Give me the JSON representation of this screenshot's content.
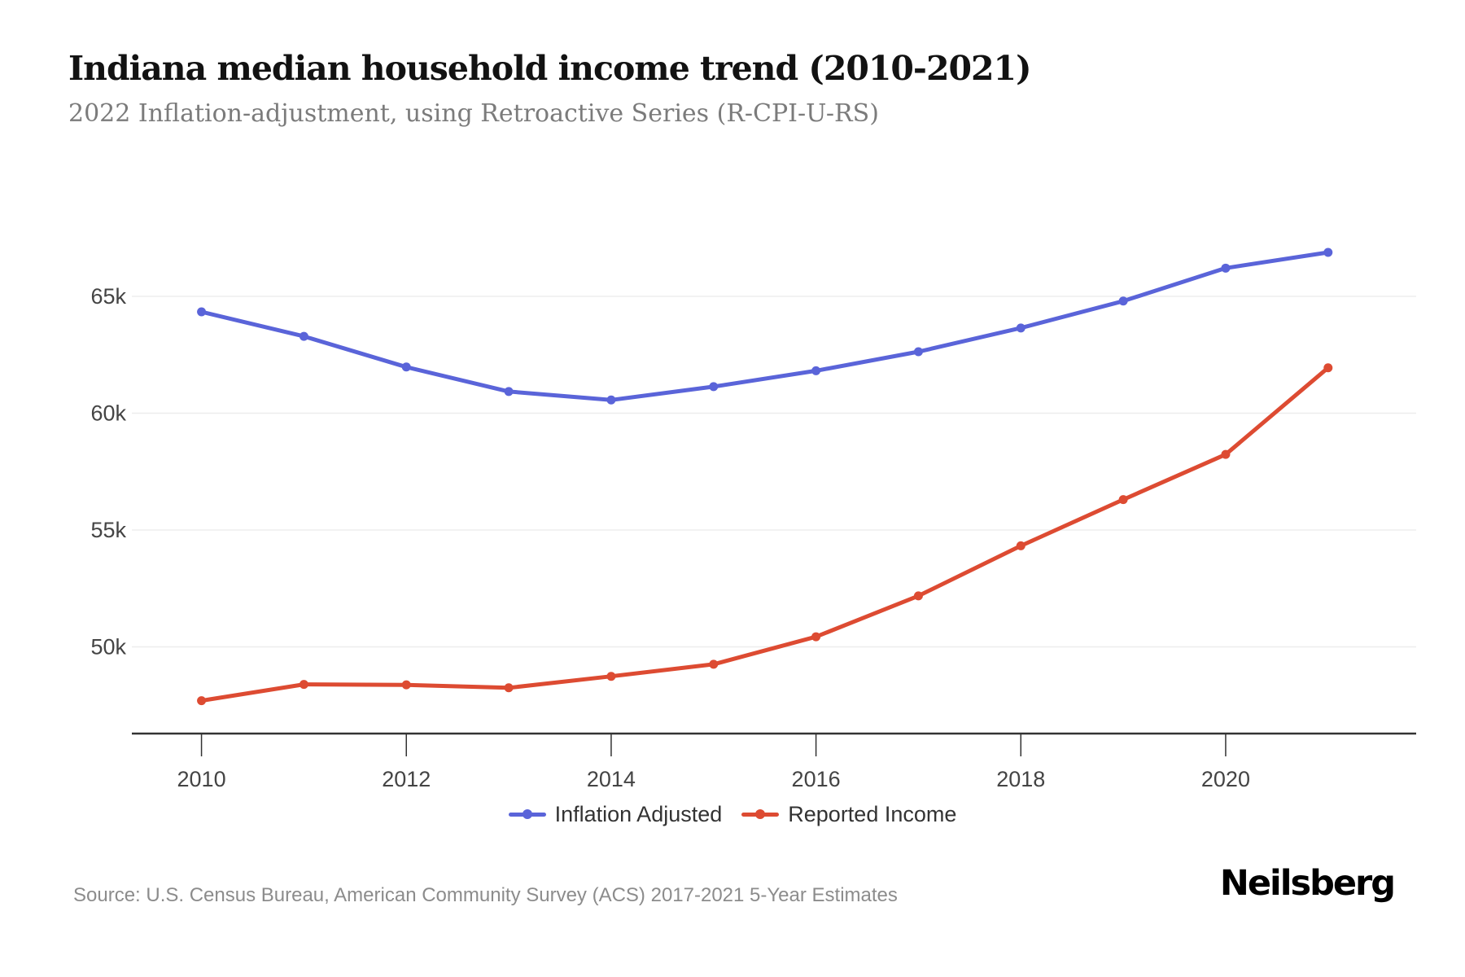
{
  "header": {
    "title": "Indiana median household income trend (2010-2021)",
    "subtitle": "2022 Inflation-adjustment, using Retroactive Series (R-CPI-U-RS)"
  },
  "chart_data": {
    "type": "line",
    "title": "Indiana median household income trend (2010-2021)",
    "subtitle": "2022 Inflation-adjustment, using Retroactive Series (R-CPI-U-RS)",
    "x": [
      2010,
      2011,
      2012,
      2013,
      2014,
      2015,
      2016,
      2017,
      2018,
      2019,
      2020,
      2021
    ],
    "series": [
      {
        "name": "Inflation Adjusted",
        "color": "#5a64d9",
        "values": [
          64338,
          63288,
          61977,
          60928,
          60566,
          61135,
          61816,
          62629,
          63647,
          64799,
          66208,
          66881
        ]
      },
      {
        "name": "Reported Income",
        "color": "#dd4b32",
        "values": [
          47697,
          48393,
          48374,
          48248,
          48737,
          49255,
          50433,
          52182,
          54325,
          56303,
          58235,
          61944
        ]
      }
    ],
    "xlabel": "",
    "ylabel": "",
    "xlim": [
      2009.32,
      2021.86
    ],
    "ylim": [
      46289,
      68972
    ],
    "y_ticks": [
      {
        "value": 50000,
        "label": "50k"
      },
      {
        "value": 55000,
        "label": "55k"
      },
      {
        "value": 60000,
        "label": "60k"
      },
      {
        "value": 65000,
        "label": "65k"
      }
    ],
    "x_ticks": [
      {
        "value": 2010,
        "label": "2010"
      },
      {
        "value": 2012,
        "label": "2012"
      },
      {
        "value": 2014,
        "label": "2014"
      },
      {
        "value": 2016,
        "label": "2016"
      },
      {
        "value": 2018,
        "label": "2018"
      },
      {
        "value": 2020,
        "label": "2020"
      }
    ],
    "grid": true,
    "legend_position": "bottom",
    "colors": {
      "grid": "#ededed",
      "axis": "#333333",
      "tick_text": "#444444"
    }
  },
  "legend": {
    "items": [
      {
        "label": "Inflation Adjusted"
      },
      {
        "label": "Reported Income"
      }
    ]
  },
  "footer": {
    "source": "Source: U.S. Census Bureau, American Community Survey (ACS) 2017-2021 5-Year Estimates",
    "brand": "Neilsberg"
  }
}
